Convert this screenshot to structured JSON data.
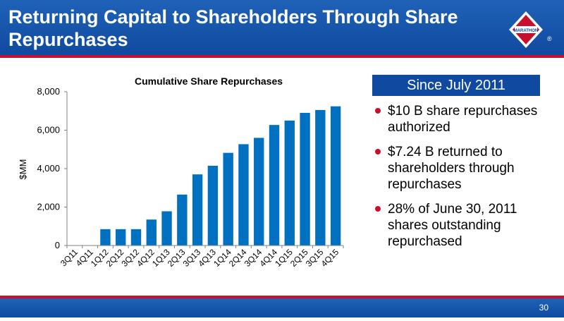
{
  "header": {
    "title": "Returning Capital to Shareholders Through Share Repurchases"
  },
  "logo": {
    "text": "MARATHON"
  },
  "side": {
    "heading": "Since July 2011",
    "bullets": [
      "$10 B share repurchases authorized",
      "$7.24 B returned to shareholders through repurchases",
      "28% of June 30, 2011 shares outstanding repurchased"
    ]
  },
  "footer": {
    "page": "30"
  },
  "colors": {
    "brand_blue": "#0f4aa0",
    "brand_red": "#c8102e",
    "bar": "#0070c0"
  },
  "chart_data": {
    "type": "bar",
    "title": "Cumulative Share Repurchases",
    "ylabel": "$MM",
    "xlabel": "",
    "ylim": [
      0,
      8000
    ],
    "yticks": [
      "0",
      "2,000",
      "4,000",
      "6,000",
      "8,000"
    ],
    "categories": [
      "3Q11",
      "4Q11",
      "1Q12",
      "2Q12",
      "3Q12",
      "4Q12",
      "1Q13",
      "2Q13",
      "3Q13",
      "4Q13",
      "1Q14",
      "2Q14",
      "3Q14",
      "4Q14",
      "1Q15",
      "2Q15",
      "3Q15",
      "4Q15"
    ],
    "values": [
      0,
      0,
      850,
      850,
      850,
      1350,
      1780,
      2650,
      3700,
      4150,
      4820,
      5270,
      5600,
      6270,
      6500,
      6900,
      7050,
      7240
    ],
    "grid": false,
    "legend": "none"
  }
}
